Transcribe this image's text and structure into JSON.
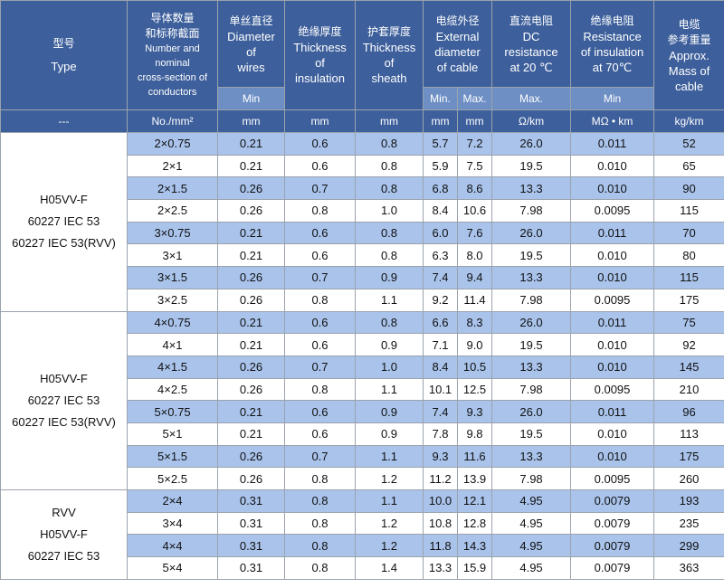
{
  "headers": {
    "type": {
      "cn": "型号",
      "en": "Type"
    },
    "conductors": {
      "cn_line1": "导体数量",
      "cn_line2": "和标称截面",
      "en_lines": [
        "Number and",
        "nominal",
        "cross-section of",
        "conductors"
      ]
    },
    "diameter_wires": {
      "cn": "单丝直径",
      "en_lines": [
        "Diameter",
        "of",
        "wires"
      ],
      "sub": "Min"
    },
    "insulation": {
      "cn": "绝缘厚度",
      "en_lines": [
        "Thickness",
        "of",
        "insulation"
      ]
    },
    "sheath": {
      "cn": "护套厚度",
      "en_lines": [
        "Thickness",
        "of",
        "sheath"
      ]
    },
    "external": {
      "cn": "电缆外径",
      "en_lines": [
        "External",
        "diameter",
        "of cable"
      ],
      "sub_min": "Min.",
      "sub_max": "Max."
    },
    "dc_resistance": {
      "cn": "直流电阻",
      "en_lines": [
        "DC",
        "resistance",
        "at 20 ℃"
      ],
      "sub": "Max."
    },
    "insulation_resistance": {
      "cn": "绝缘电阻",
      "en_lines": [
        "Resistance",
        "of insulation",
        "at 70℃"
      ],
      "sub": "Min"
    },
    "mass": {
      "cn": "电缆",
      "cn2": "参考重量",
      "en_lines": [
        "Approx.",
        "Mass of",
        "cable"
      ]
    }
  },
  "units": [
    "---",
    "No./mm²",
    "mm",
    "mm",
    "mm",
    "mm",
    "mm",
    "Ω/km",
    "MΩ • km",
    "kg/km"
  ],
  "groups": [
    {
      "type_lines": [
        "H05VV-F",
        "60227 IEC 53",
        "60227 IEC 53(RVV)"
      ],
      "rows": [
        [
          "2×0.75",
          "0.21",
          "0.6",
          "0.8",
          "5.7",
          "7.2",
          "26.0",
          "0.011",
          "52"
        ],
        [
          "2×1",
          "0.21",
          "0.6",
          "0.8",
          "5.9",
          "7.5",
          "19.5",
          "0.010",
          "65"
        ],
        [
          "2×1.5",
          "0.26",
          "0.7",
          "0.8",
          "6.8",
          "8.6",
          "13.3",
          "0.010",
          "90"
        ],
        [
          "2×2.5",
          "0.26",
          "0.8",
          "1.0",
          "8.4",
          "10.6",
          "7.98",
          "0.0095",
          "115"
        ],
        [
          "3×0.75",
          "0.21",
          "0.6",
          "0.8",
          "6.0",
          "7.6",
          "26.0",
          "0.011",
          "70"
        ],
        [
          "3×1",
          "0.21",
          "0.6",
          "0.8",
          "6.3",
          "8.0",
          "19.5",
          "0.010",
          "80"
        ],
        [
          "3×1.5",
          "0.26",
          "0.7",
          "0.9",
          "7.4",
          "9.4",
          "13.3",
          "0.010",
          "115"
        ],
        [
          "3×2.5",
          "0.26",
          "0.8",
          "1.1",
          "9.2",
          "11.4",
          "7.98",
          "0.0095",
          "175"
        ]
      ]
    },
    {
      "type_lines": [
        "H05VV-F",
        "60227 IEC 53",
        "60227 IEC 53(RVV)"
      ],
      "rows": [
        [
          "4×0.75",
          "0.21",
          "0.6",
          "0.8",
          "6.6",
          "8.3",
          "26.0",
          "0.011",
          "75"
        ],
        [
          "4×1",
          "0.21",
          "0.6",
          "0.9",
          "7.1",
          "9.0",
          "19.5",
          "0.010",
          "92"
        ],
        [
          "4×1.5",
          "0.26",
          "0.7",
          "1.0",
          "8.4",
          "10.5",
          "13.3",
          "0.010",
          "145"
        ],
        [
          "4×2.5",
          "0.26",
          "0.8",
          "1.1",
          "10.1",
          "12.5",
          "7.98",
          "0.0095",
          "210"
        ],
        [
          "5×0.75",
          "0.21",
          "0.6",
          "0.9",
          "7.4",
          "9.3",
          "26.0",
          "0.011",
          "96"
        ],
        [
          "5×1",
          "0.21",
          "0.6",
          "0.9",
          "7.8",
          "9.8",
          "19.5",
          "0.010",
          "113"
        ],
        [
          "5×1.5",
          "0.26",
          "0.7",
          "1.1",
          "9.3",
          "11.6",
          "13.3",
          "0.010",
          "175"
        ],
        [
          "5×2.5",
          "0.26",
          "0.8",
          "1.2",
          "11.2",
          "13.9",
          "7.98",
          "0.0095",
          "260"
        ]
      ]
    },
    {
      "type_lines": [
        "RVV",
        "H05VV-F",
        "60227 IEC 53"
      ],
      "rows": [
        [
          "2×4",
          "0.31",
          "0.8",
          "1.1",
          "10.0",
          "12.1",
          "4.95",
          "0.0079",
          "193"
        ],
        [
          "3×4",
          "0.31",
          "0.8",
          "1.2",
          "10.8",
          "12.8",
          "4.95",
          "0.0079",
          "235"
        ],
        [
          "4×4",
          "0.31",
          "0.8",
          "1.2",
          "11.8",
          "14.3",
          "4.95",
          "0.0079",
          "299"
        ],
        [
          "5×4",
          "0.31",
          "0.8",
          "1.4",
          "13.3",
          "15.9",
          "4.95",
          "0.0079",
          "363"
        ]
      ]
    }
  ],
  "colors": {
    "header_dark": "#3d5f9b",
    "header_light": "#6e8fc4",
    "row_band": "#a9c3eb"
  }
}
